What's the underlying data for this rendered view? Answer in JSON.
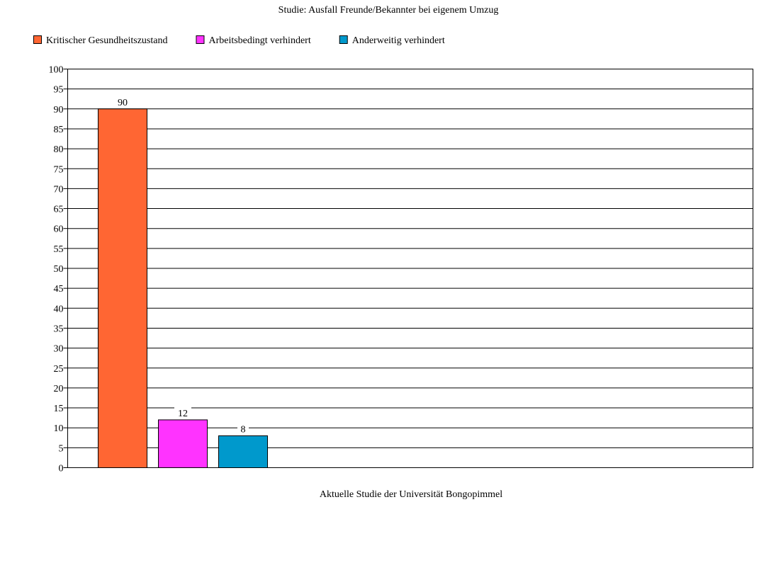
{
  "chart_data": {
    "type": "bar",
    "title": "Studie: Ausfall Freunde/Bekannter bei eigenem Umzug",
    "xlabel": "Aktuelle Studie der Universität Bongopimmel",
    "ylabel": "",
    "ylim": [
      0,
      100
    ],
    "ytick_step": 5,
    "grid": true,
    "legend_position": "top-left",
    "data_labels": true,
    "series": [
      {
        "name": "Kritischer Gesundheitszustand",
        "value": 90,
        "color": "#ff6633"
      },
      {
        "name": "Arbeitsbedingt verhindert",
        "value": 12,
        "color": "#ff33ff"
      },
      {
        "name": "Anderweitig verhindert",
        "value": 8,
        "color": "#0099cc"
      }
    ]
  }
}
